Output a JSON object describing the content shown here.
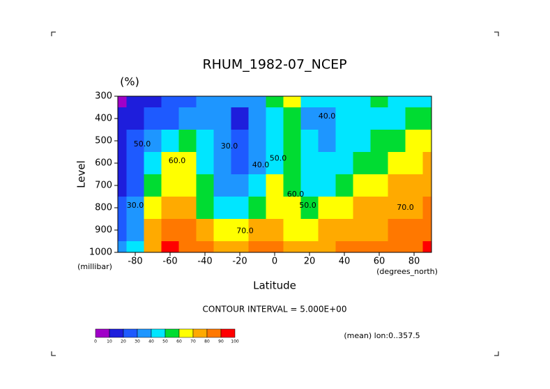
{
  "chart_data": {
    "type": "contour",
    "title": "RHUM_1982-07_NCEP",
    "units": "(%)",
    "x_label": "Latitude",
    "x_unit": "(degrees_north)",
    "y_label": "Level",
    "y_unit": "(millibar)",
    "footnote": "CONTOUR INTERVAL = 5.000E+00",
    "note": "(mean) lon:0..357.5",
    "xlim": [
      -90,
      90
    ],
    "xticks": [
      -80,
      -60,
      -40,
      -20,
      0,
      20,
      40,
      60,
      80
    ],
    "ylim": [
      300,
      1000
    ],
    "yticks": [
      300,
      400,
      500,
      600,
      700,
      800,
      900,
      1000
    ],
    "x": [
      -90,
      -80,
      -70,
      -60,
      -50,
      -40,
      -30,
      -20,
      -10,
      0,
      10,
      20,
      30,
      40,
      50,
      60,
      70,
      80,
      90
    ],
    "y": [
      300,
      400,
      500,
      600,
      700,
      800,
      900,
      1000
    ],
    "z": [
      [
        5,
        10,
        15,
        20,
        25,
        30,
        30,
        30,
        35,
        50,
        60,
        45,
        40,
        45,
        45,
        50,
        45,
        40,
        40
      ],
      [
        10,
        15,
        20,
        25,
        30,
        30,
        30,
        15,
        30,
        45,
        50,
        35,
        30,
        40,
        45,
        45,
        45,
        50,
        50
      ],
      [
        15,
        20,
        35,
        45,
        55,
        45,
        30,
        20,
        30,
        45,
        55,
        40,
        35,
        40,
        45,
        50,
        55,
        60,
        60
      ],
      [
        15,
        20,
        45,
        60,
        60,
        45,
        30,
        25,
        35,
        45,
        55,
        40,
        40,
        45,
        50,
        55,
        65,
        65,
        70
      ],
      [
        15,
        25,
        55,
        65,
        65,
        50,
        35,
        35,
        45,
        65,
        55,
        45,
        45,
        55,
        60,
        65,
        70,
        70,
        70
      ],
      [
        20,
        30,
        60,
        75,
        70,
        55,
        45,
        45,
        55,
        65,
        60,
        50,
        60,
        65,
        70,
        70,
        70,
        75,
        80
      ],
      [
        25,
        35,
        70,
        85,
        80,
        70,
        60,
        65,
        70,
        75,
        65,
        65,
        70,
        75,
        75,
        75,
        80,
        80,
        85
      ],
      [
        30,
        40,
        75,
        90,
        85,
        80,
        75,
        75,
        80,
        80,
        75,
        75,
        75,
        80,
        80,
        80,
        80,
        85,
        90
      ]
    ],
    "levels": [
      0,
      10,
      20,
      30,
      40,
      50,
      60,
      70,
      80,
      90,
      100
    ],
    "colors": [
      "#a000c8",
      "#1e1edc",
      "#1e5aff",
      "#1e96ff",
      "#00e6ff",
      "#00dc32",
      "#ffff00",
      "#ffaa00",
      "#ff7800",
      "#ff0000"
    ],
    "contour_labels": [
      {
        "value": 40,
        "label": "40.0",
        "lat": 30,
        "level": 390
      },
      {
        "value": 50,
        "label": "50.0",
        "lat": -76,
        "level": 515
      },
      {
        "value": 60,
        "label": "60.0",
        "lat": -56,
        "level": 590
      },
      {
        "value": 30,
        "label": "30.0",
        "lat": -26,
        "level": 525
      },
      {
        "value": 40,
        "label": "40.0",
        "lat": -8,
        "level": 610
      },
      {
        "value": 50,
        "label": "50.0",
        "lat": 2,
        "level": 580
      },
      {
        "value": 60,
        "label": "60.0",
        "lat": 12,
        "level": 740
      },
      {
        "value": 50,
        "label": "50.0",
        "lat": 19,
        "level": 790
      },
      {
        "value": 70,
        "label": "70.0",
        "lat": -17,
        "level": 905
      },
      {
        "value": 70,
        "label": "70.0",
        "lat": 75,
        "level": 800
      },
      {
        "value": 30,
        "label": "30.0",
        "lat": -80,
        "level": 790
      }
    ]
  }
}
